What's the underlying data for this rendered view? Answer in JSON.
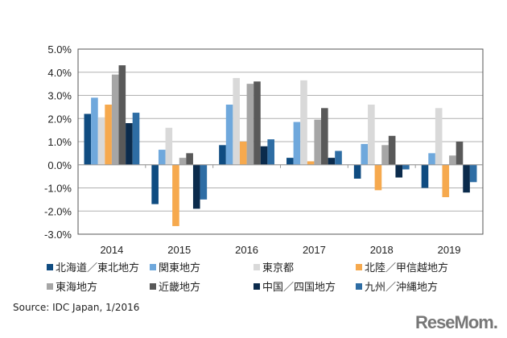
{
  "chart_data": {
    "type": "bar",
    "categories": [
      "2014",
      "2015",
      "2016",
      "2017",
      "2018",
      "2019"
    ],
    "ylim": [
      -3.0,
      5.0
    ],
    "yticks": [
      "5.0%",
      "4.0%",
      "3.0%",
      "2.0%",
      "1.0%",
      "0.0%",
      "-1.0%",
      "-2.0%",
      "-3.0%"
    ],
    "grid": true,
    "legend_placement": "bottom",
    "series": [
      {
        "name": "北海道／東北地方",
        "color": "#0f4c81",
        "values": [
          2.2,
          -1.7,
          0.85,
          0.3,
          -0.6,
          -1.0
        ]
      },
      {
        "name": "関東地方",
        "color": "#6fa8dc",
        "values": [
          2.9,
          0.65,
          2.6,
          1.85,
          0.9,
          0.5
        ]
      },
      {
        "name": "東京都",
        "color": "#d9d9d9",
        "values": [
          2.05,
          1.6,
          3.75,
          3.65,
          2.6,
          2.45
        ]
      },
      {
        "name": "北陸／甲信越地方",
        "color": "#f6a94e",
        "values": [
          2.6,
          -2.65,
          1.0,
          0.15,
          -1.1,
          -1.4
        ]
      },
      {
        "name": "東海地方",
        "color": "#a6a6a6",
        "values": [
          3.9,
          0.3,
          3.5,
          1.95,
          0.85,
          0.4
        ]
      },
      {
        "name": "近畿地方",
        "color": "#595959",
        "values": [
          4.3,
          0.5,
          3.6,
          2.45,
          1.25,
          1.0
        ]
      },
      {
        "name": "中国／四国地方",
        "color": "#0b2b4c",
        "values": [
          1.8,
          -1.9,
          0.8,
          0.3,
          -0.55,
          -1.2
        ]
      },
      {
        "name": "九州／沖縄地方",
        "color": "#2e6da4",
        "values": [
          2.25,
          -1.5,
          1.1,
          0.6,
          -0.2,
          -0.75
        ]
      }
    ]
  },
  "source": "Source: IDC Japan, 1/2016",
  "logo": "ReseMom"
}
